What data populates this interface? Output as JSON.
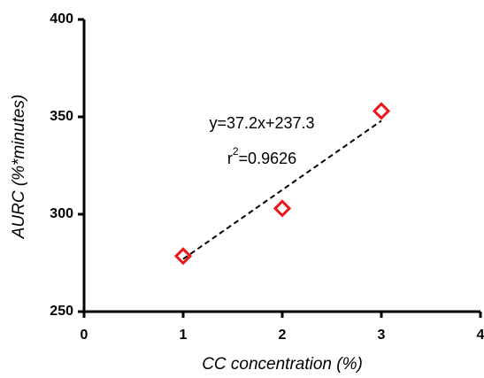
{
  "chart_data": {
    "type": "scatter",
    "x_label": "CC concentration (%)",
    "y_label": "AURC (%*minutes)",
    "x": [
      1,
      2,
      3
    ],
    "values": [
      278.5,
      303,
      353
    ],
    "color": "#e8171c",
    "xlim": [
      0,
      4
    ],
    "xticks": [
      0,
      1,
      2,
      3,
      4
    ],
    "ylim": [
      250,
      400
    ],
    "yticks": [
      250,
      300,
      350,
      400
    ],
    "trendline": {
      "x": [
        1,
        3
      ],
      "y": [
        277,
        348
      ]
    },
    "equation": "y=37.2x+237.3",
    "r2": {
      "base": "r",
      "sup": "2",
      "value": "=0.9626"
    }
  }
}
